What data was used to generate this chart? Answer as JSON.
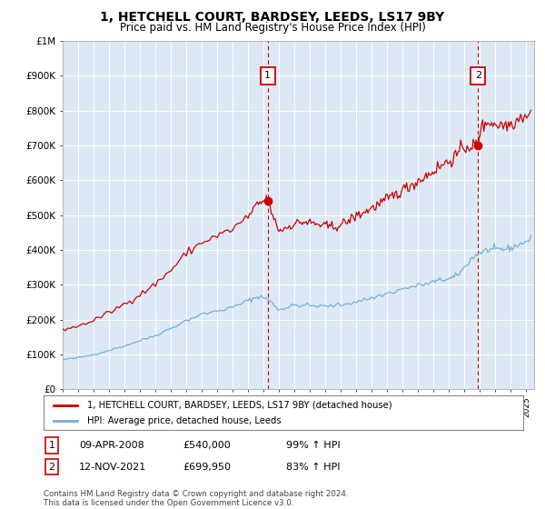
{
  "title": "1, HETCHELL COURT, BARDSEY, LEEDS, LS17 9BY",
  "subtitle": "Price paid vs. HM Land Registry's House Price Index (HPI)",
  "title_fontsize": 10,
  "subtitle_fontsize": 8.5,
  "ylim": [
    0,
    1000000
  ],
  "yticks": [
    0,
    100000,
    200000,
    300000,
    400000,
    500000,
    600000,
    700000,
    800000,
    900000,
    1000000
  ],
  "ytick_labels": [
    "£0",
    "£100K",
    "£200K",
    "£300K",
    "£400K",
    "£500K",
    "£600K",
    "£700K",
    "£800K",
    "£900K",
    "£1M"
  ],
  "legend_label_red": "1, HETCHELL COURT, BARDSEY, LEEDS, LS17 9BY (detached house)",
  "legend_label_blue": "HPI: Average price, detached house, Leeds",
  "ann1_label": "1",
  "ann1_x": 2008.27,
  "ann1_y": 540000,
  "ann1_date": "09-APR-2008",
  "ann1_price": "£540,000",
  "ann1_hpi": "99% ↑ HPI",
  "ann2_label": "2",
  "ann2_x": 2021.87,
  "ann2_y": 699950,
  "ann2_date": "12-NOV-2021",
  "ann2_price": "£699,950",
  "ann2_hpi": "83% ↑ HPI",
  "footer": "Contains HM Land Registry data © Crown copyright and database right 2024.\nThis data is licensed under the Open Government Licence v3.0.",
  "bg": "#ffffff",
  "plot_bg": "#dce9f5",
  "grid_color": "#ffffff",
  "red_color": "#cc0000",
  "blue_color": "#7aadd4",
  "ann_box_color": "#cc0000",
  "xmin": 1995.0,
  "xmax": 2025.5
}
